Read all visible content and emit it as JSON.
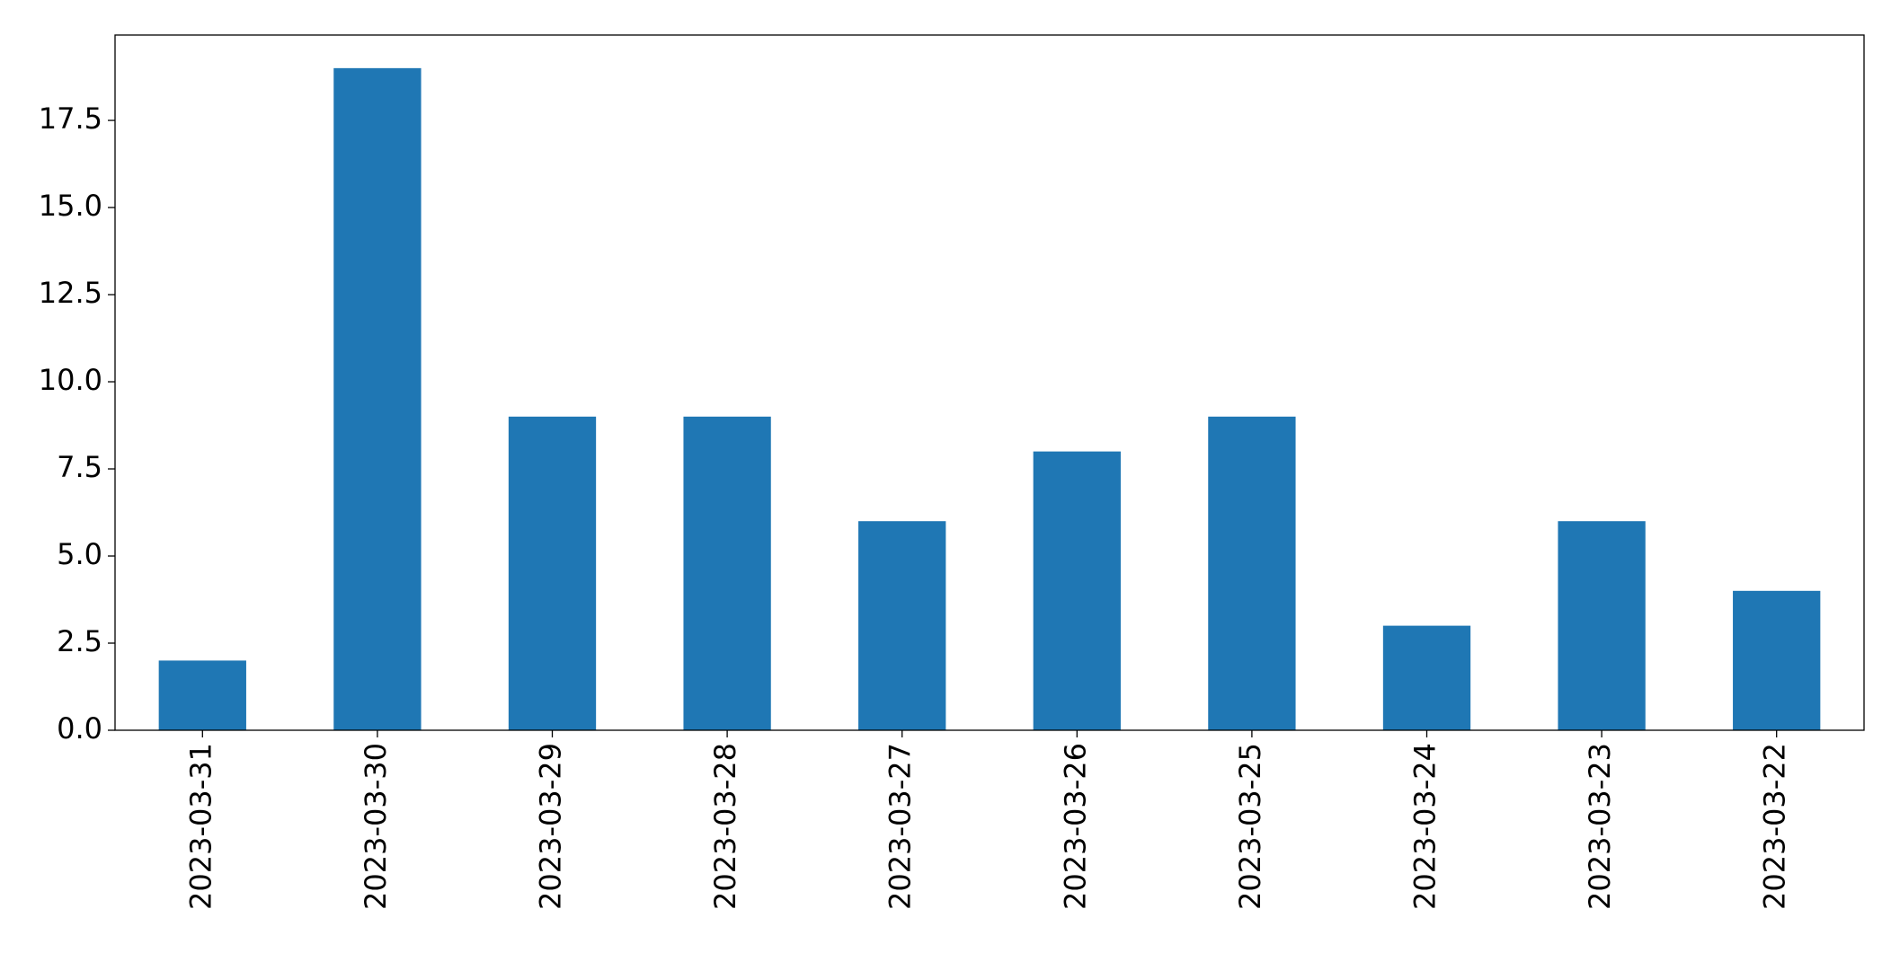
{
  "chart_data": {
    "type": "bar",
    "categories": [
      "2023-03-31",
      "2023-03-30",
      "2023-03-29",
      "2023-03-28",
      "2023-03-27",
      "2023-03-26",
      "2023-03-25",
      "2023-03-24",
      "2023-03-23",
      "2023-03-22"
    ],
    "values": [
      2,
      19,
      9,
      9,
      6,
      8,
      9,
      3,
      6,
      4
    ],
    "color": "#1f77b4",
    "ylim": [
      0,
      19.95
    ],
    "yticks": [
      {
        "value": 0,
        "label": "0.0"
      },
      {
        "value": 2.5,
        "label": "2.5"
      },
      {
        "value": 5,
        "label": "5.0"
      },
      {
        "value": 7.5,
        "label": "7.5"
      },
      {
        "value": 10,
        "label": "10.0"
      },
      {
        "value": 12.5,
        "label": "12.5"
      },
      {
        "value": 15,
        "label": "15.0"
      },
      {
        "value": 17.5,
        "label": "17.5"
      }
    ],
    "grid": false
  }
}
